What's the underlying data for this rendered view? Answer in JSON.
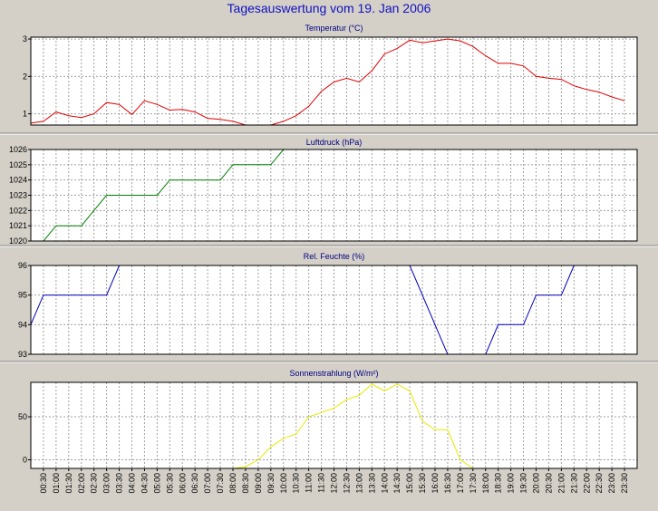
{
  "title": "Tagesauswertung vom 19. Jan 2006",
  "x_labels": [
    "00:30",
    "01:00",
    "01:30",
    "02:00",
    "02:30",
    "03:00",
    "03:30",
    "04:00",
    "04:30",
    "05:00",
    "05:30",
    "06:00",
    "06:30",
    "07:00",
    "07:30",
    "08:00",
    "08:30",
    "09:00",
    "09:30",
    "10:00",
    "10:30",
    "11:00",
    "11:30",
    "12:00",
    "12:30",
    "13:00",
    "13:30",
    "14:00",
    "14:30",
    "15:00",
    "15:30",
    "16:00",
    "16:30",
    "17:00",
    "17:30",
    "18:00",
    "18:30",
    "19:00",
    "19:30",
    "20:00",
    "20:30",
    "21:00",
    "21:30",
    "22:00",
    "22:30",
    "23:00",
    "23:30"
  ],
  "chart_data": [
    {
      "type": "line",
      "title": "Temperatur (°C)",
      "ylim": [
        0.7,
        3.05
      ],
      "yticks": [
        1,
        2,
        3
      ],
      "color": "#e00000",
      "x": [
        0,
        0.5,
        1,
        1.5,
        2,
        2.5,
        3,
        3.5,
        4,
        4.5,
        5,
        5.5,
        6,
        6.5,
        7,
        7.5,
        8,
        8.5,
        9,
        9.5,
        10,
        10.5,
        11,
        11.5,
        12,
        12.5,
        13,
        13.5,
        14,
        14.5,
        15,
        15.5,
        16,
        16.5,
        17,
        17.5,
        18,
        18.5,
        19,
        19.5,
        20,
        20.5,
        21,
        21.5,
        22,
        22.5,
        23,
        23.5
      ],
      "values": [
        0.75,
        0.8,
        1.05,
        0.95,
        0.9,
        1.0,
        1.3,
        1.25,
        0.98,
        1.35,
        1.25,
        1.1,
        1.12,
        1.05,
        0.88,
        0.85,
        0.8,
        0.7,
        0.68,
        0.7,
        0.8,
        0.95,
        1.2,
        1.6,
        1.85,
        1.95,
        1.85,
        2.15,
        2.6,
        2.75,
        2.97,
        2.9,
        2.95,
        3.0,
        2.95,
        2.8,
        2.55,
        2.35,
        2.35,
        2.28,
        2.0,
        1.95,
        1.92,
        1.75,
        1.65,
        1.58,
        1.45,
        1.35
      ],
      "grid": true
    },
    {
      "type": "line",
      "title": "Luftdruck (hPa)",
      "ylim": [
        1020,
        1026
      ],
      "yticks": [
        1020,
        1021,
        1022,
        1023,
        1024,
        1025,
        1026
      ],
      "color": "#008000",
      "x": [
        0.5,
        1,
        2,
        2.5,
        3,
        5,
        5.5,
        7.5,
        8,
        9.5,
        10,
        10.5
      ],
      "values": [
        1020,
        1021,
        1021,
        1022,
        1023,
        1023,
        1024,
        1024,
        1025,
        1025,
        1026,
        1026
      ],
      "grid": true
    },
    {
      "type": "line",
      "title": "Rel. Feuchte (%)",
      "ylim": [
        93,
        96
      ],
      "yticks": [
        93,
        94,
        95,
        96
      ],
      "color": "#0000c0",
      "x": [
        0,
        0.5,
        3,
        3.5,
        15,
        16.5,
        18,
        18.5,
        19.5,
        20,
        21,
        21.5
      ],
      "values": [
        94,
        95,
        95,
        96,
        96,
        93,
        93,
        94,
        94,
        95,
        95,
        96
      ],
      "grid": true
    },
    {
      "type": "line",
      "title": "Sonnenstrahlung (W/m²)",
      "ylim": [
        -10,
        90
      ],
      "yticks": [
        0,
        50
      ],
      "color": "#e8e800",
      "x": [
        2.5,
        8,
        8.5,
        9,
        9.5,
        10,
        10.5,
        11,
        11.5,
        12,
        12.5,
        13,
        13.5,
        14,
        14.5,
        15,
        15.5,
        16,
        16.5,
        17,
        17.5,
        18,
        23.5
      ],
      "values": [
        -10,
        -10,
        -8,
        0,
        15,
        25,
        30,
        50,
        55,
        60,
        70,
        75,
        88,
        80,
        88,
        80,
        45,
        35,
        35,
        0,
        -10,
        -10,
        -10
      ],
      "grid": true
    }
  ]
}
